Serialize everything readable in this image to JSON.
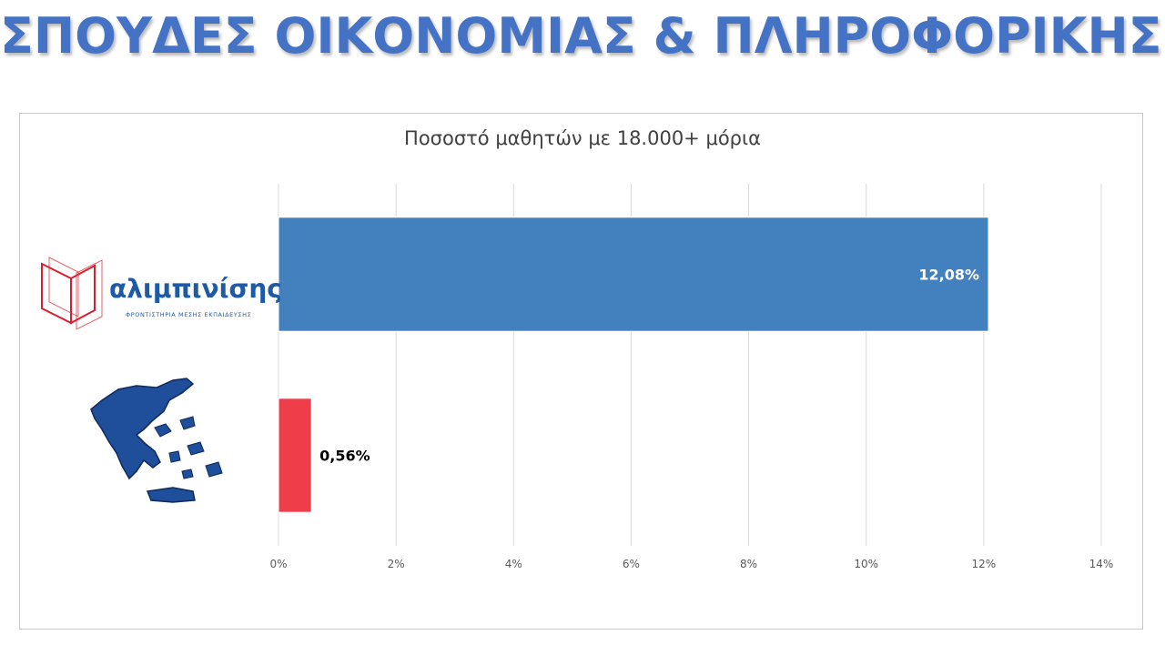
{
  "slide": {
    "title": "ΣΠΟΥΔΕΣ ΟΙΚΟΝΟΜΙΑΣ & ΠΛΗΡΟΦΟΡΙΚΗΣ"
  },
  "logo": {
    "name": "αλιμπινίσης",
    "tagline": "ΦΡΟΝΤΙΣΤΗΡΙΑ ΜΕΣΗΣ ΕΚΠΑΙΔΕΥΣΗΣ"
  },
  "chart_data": {
    "type": "bar",
    "orientation": "horizontal",
    "title": "Ποσοστό μαθητών με 18.000+ μόρια",
    "xlabel": "",
    "ylabel": "",
    "xlim": [
      0,
      14
    ],
    "x_ticks": [
      "0%",
      "2%",
      "4%",
      "6%",
      "8%",
      "10%",
      "12%",
      "14%"
    ],
    "grid": true,
    "legend": "none",
    "bars": [
      {
        "value": 12.08,
        "label": "12,08%",
        "color": "#4380be",
        "label_position": "inside-end",
        "label_color": "#ffffff",
        "category_icon": "alimpinisis-logo"
      },
      {
        "value": 0.56,
        "label": "0,56%",
        "color": "#ef3e4a",
        "label_position": "outside-end",
        "label_color": "#000000",
        "category_icon": "greece-map-icon"
      }
    ]
  },
  "colors": {
    "title": "#4472c4",
    "logo_red": "#d7202f",
    "logo_blue": "#1f5aa6",
    "map_blue": "#1f4e9a"
  }
}
